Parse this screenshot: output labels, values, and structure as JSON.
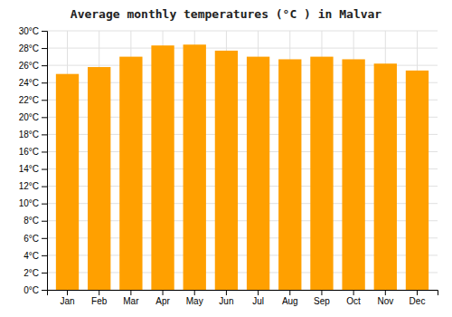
{
  "chart_data": {
    "type": "bar",
    "title": "Average monthly temperatures (°C ) in Malvar",
    "categories": [
      "Jan",
      "Feb",
      "Mar",
      "Apr",
      "May",
      "Jun",
      "Jul",
      "Aug",
      "Sep",
      "Oct",
      "Nov",
      "Dec"
    ],
    "values": [
      25.0,
      25.8,
      27.0,
      28.3,
      28.4,
      27.7,
      27.0,
      26.7,
      27.0,
      26.7,
      26.2,
      25.4
    ],
    "color": "#FFA000",
    "ylim": [
      0,
      30
    ],
    "yticks": [
      {
        "value": 0,
        "label": "0°C"
      },
      {
        "value": 2,
        "label": "2°C"
      },
      {
        "value": 4,
        "label": "4°C"
      },
      {
        "value": 6,
        "label": "6°C"
      },
      {
        "value": 8,
        "label": "8°C"
      },
      {
        "value": 10,
        "label": "10°C"
      },
      {
        "value": 12,
        "label": "12°C"
      },
      {
        "value": 14,
        "label": "14°C"
      },
      {
        "value": 16,
        "label": "16°C"
      },
      {
        "value": 18,
        "label": "18°C"
      },
      {
        "value": 20,
        "label": "20°C"
      },
      {
        "value": 22,
        "label": "22°C"
      },
      {
        "value": 24,
        "label": "24°C"
      },
      {
        "value": 26,
        "label": "26°C"
      },
      {
        "value": 28,
        "label": "28°C"
      },
      {
        "value": 30,
        "label": "30°C"
      }
    ],
    "grid": true
  }
}
